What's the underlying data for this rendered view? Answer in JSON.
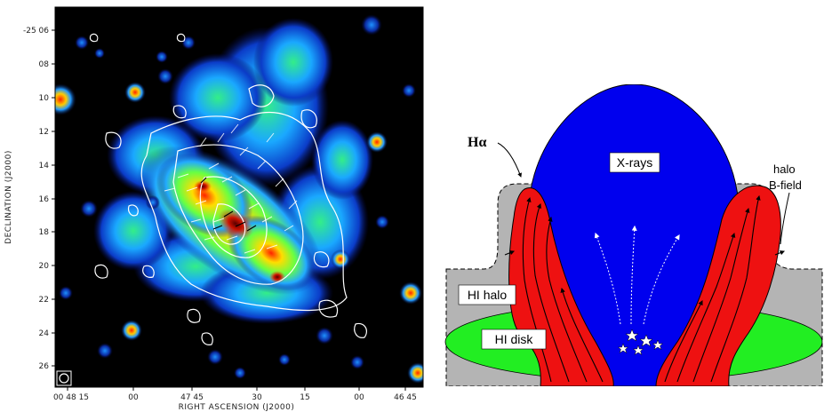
{
  "radio_map": {
    "y_axis_title": "DECLINATION (J2000)",
    "x_axis_title": "RIGHT ASCENSION (J2000)",
    "y_tick_labels": [
      "-25 06",
      "08",
      "10",
      "12",
      "14",
      "16",
      "18",
      "20",
      "22",
      "24",
      "26"
    ],
    "x_tick_labels": [
      "00 48 15",
      "00",
      "47 45",
      "30",
      "15",
      "00",
      "46 45"
    ]
  },
  "schematic": {
    "labels": {
      "xrays": "X-rays",
      "halpha": "Hα",
      "halo_bfield_line1": "halo",
      "halo_bfield_line2": "B-field",
      "hi_halo": "HI halo",
      "hi_disk": "HI disk"
    },
    "colors": {
      "xray_bubble": "#0000ee",
      "halpha_red": "#ee1111",
      "hi_disk_green": "#22ee22",
      "hi_halo_gray": "#b4b4b4"
    }
  }
}
